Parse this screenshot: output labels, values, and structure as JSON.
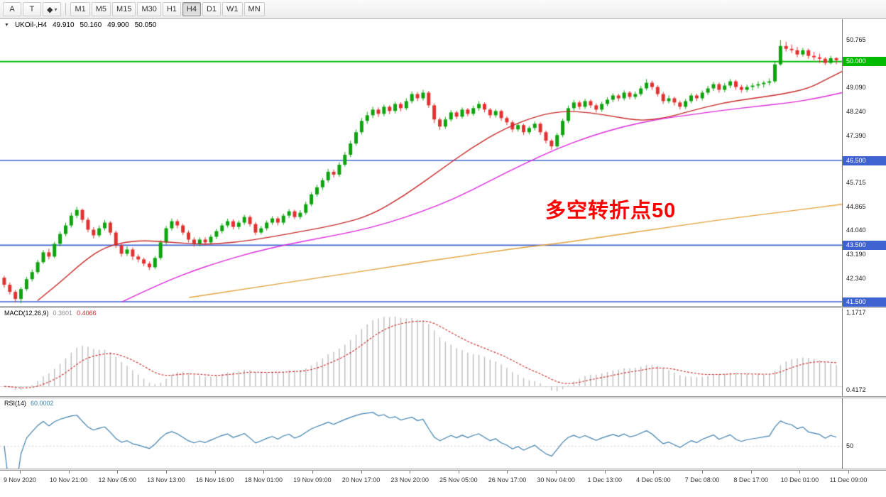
{
  "icons": {
    "collapse": "▼",
    "caret": "▾"
  },
  "toolbar": {
    "tools": [
      {
        "name": "arrow-tool",
        "label": "A"
      },
      {
        "name": "text-tool",
        "label": "T"
      },
      {
        "name": "shapes-tool",
        "label": "◆",
        "caret": true
      }
    ],
    "timeframes": [
      {
        "label": "M1",
        "active": false
      },
      {
        "label": "M5",
        "active": false
      },
      {
        "label": "M15",
        "active": false
      },
      {
        "label": "M30",
        "active": false
      },
      {
        "label": "H1",
        "active": false
      },
      {
        "label": "H4",
        "active": true
      },
      {
        "label": "D1",
        "active": false
      },
      {
        "label": "W1",
        "active": false
      },
      {
        "label": "MN",
        "active": false
      }
    ]
  },
  "main_chart": {
    "symbol": "UKOil-,H4",
    "ohlc_display": {
      "open": "49.910",
      "high": "50.160",
      "low": "49.900",
      "close": "50.050"
    },
    "annotation": "多空转折点50",
    "annotation_color": "#FE0000",
    "axis_labels": [
      "50.765",
      "49.090",
      "48.240",
      "47.390",
      "45.715",
      "44.865",
      "44.040",
      "43.190",
      "42.340"
    ],
    "hlines": [
      {
        "price": 50.0,
        "label": "50.000",
        "color": "#00BA00",
        "width": 2
      },
      {
        "price": 46.5,
        "label": "46.500",
        "color": "#3E62D0",
        "width": 1.6
      },
      {
        "price": 43.5,
        "label": "43.500",
        "color": "#3E62D0",
        "width": 1.6
      },
      {
        "price": 41.5,
        "label": "41.500",
        "color": "#3E62D0",
        "width": 1.6
      }
    ],
    "price_min": 41.35,
    "price_max": 51.5
  },
  "macd_panel": {
    "title": "MACD(12,26,9)",
    "main_value": "0.3601",
    "signal_value": "0.4066",
    "axis_labels": [
      {
        "text": "1.1717",
        "pos": 0.05
      },
      {
        "text": "0.4172",
        "pos": 0.93
      }
    ],
    "fast": 12,
    "slow": 26,
    "signal": 9,
    "histogram_color": "#BDBDBD",
    "signal_color": "#C62828"
  },
  "rsi_panel": {
    "title": "RSI(14)",
    "value": "60.0002",
    "period": 14,
    "level": 50,
    "axis_labels": [
      {
        "text": "50",
        "value": 50
      }
    ],
    "line_color": "#3E7FAD",
    "range": [
      25,
      102
    ]
  },
  "time_axis": [
    "9 Nov 2020",
    "10 Nov 21:00",
    "12 Nov 05:00",
    "13 Nov 13:00",
    "16 Nov 16:00",
    "18 Nov 01:00",
    "19 Nov 09:00",
    "20 Nov 17:00",
    "23 Nov 20:00",
    "25 Nov 05:00",
    "26 Nov 17:00",
    "30 Nov 04:00",
    "1 Dec 13:00",
    "4 Dec 05:00",
    "7 Dec 08:00",
    "8 Dec 17:00",
    "10 Dec 01:00",
    "11 Dec 09:00"
  ],
  "colors": {
    "up": "#0EA40E",
    "down": "#E03232"
  },
  "chart_data": {
    "type": "candlestick",
    "symbol": "UKOil-",
    "timeframe": "H4",
    "title": "UKOil-,H4 49.910 50.160 49.900 50.050",
    "ylim": [
      41.35,
      51.5
    ],
    "hlines": [
      50.0,
      46.5,
      43.5,
      41.5
    ],
    "indicators": {
      "macd": {
        "fast": 12,
        "slow": 26,
        "signal": 9,
        "last_main": 0.3601,
        "last_signal": 0.4066
      },
      "rsi": {
        "period": 14,
        "last": 60.0002
      }
    },
    "ohlc": [
      [
        42.35,
        42.42,
        42.0,
        42.1
      ],
      [
        42.1,
        42.18,
        41.76,
        41.85
      ],
      [
        41.85,
        41.92,
        41.48,
        41.6
      ],
      [
        41.6,
        42.02,
        41.45,
        41.95
      ],
      [
        41.95,
        42.38,
        41.88,
        42.3
      ],
      [
        42.3,
        42.64,
        42.22,
        42.55
      ],
      [
        42.55,
        42.98,
        42.48,
        42.9
      ],
      [
        42.9,
        43.33,
        42.84,
        43.25
      ],
      [
        43.25,
        43.38,
        43.0,
        43.1
      ],
      [
        43.1,
        43.62,
        43.04,
        43.55
      ],
      [
        43.55,
        43.99,
        43.47,
        43.9
      ],
      [
        43.9,
        44.3,
        43.82,
        44.2
      ],
      [
        44.2,
        44.66,
        44.12,
        44.55
      ],
      [
        44.55,
        44.86,
        44.46,
        44.75
      ],
      [
        44.75,
        44.8,
        44.3,
        44.4
      ],
      [
        44.4,
        44.48,
        43.96,
        44.05
      ],
      [
        44.05,
        44.14,
        43.74,
        43.85
      ],
      [
        43.85,
        44.2,
        43.78,
        44.1
      ],
      [
        44.1,
        44.4,
        44.02,
        44.3
      ],
      [
        44.3,
        44.36,
        43.86,
        43.95
      ],
      [
        43.95,
        44.02,
        43.4,
        43.5
      ],
      [
        43.5,
        43.58,
        43.1,
        43.2
      ],
      [
        43.2,
        43.46,
        43.12,
        43.35
      ],
      [
        43.35,
        43.42,
        42.98,
        43.1
      ],
      [
        43.1,
        43.18,
        42.9,
        43.0
      ],
      [
        43.0,
        43.06,
        42.76,
        42.85
      ],
      [
        42.85,
        42.92,
        42.62,
        42.72
      ],
      [
        42.72,
        43.12,
        42.66,
        43.05
      ],
      [
        43.05,
        43.68,
        42.98,
        43.6
      ],
      [
        43.6,
        44.18,
        43.52,
        44.1
      ],
      [
        44.1,
        44.45,
        44.02,
        44.35
      ],
      [
        44.35,
        44.42,
        44.1,
        44.2
      ],
      [
        44.2,
        44.26,
        43.86,
        43.95
      ],
      [
        43.95,
        44.02,
        43.6,
        43.7
      ],
      [
        43.7,
        43.78,
        43.45,
        43.55
      ],
      [
        43.55,
        43.78,
        43.46,
        43.7
      ],
      [
        43.7,
        43.78,
        43.5,
        43.6
      ],
      [
        43.6,
        43.88,
        43.52,
        43.8
      ],
      [
        43.8,
        44.08,
        43.72,
        44.0
      ],
      [
        44.0,
        44.28,
        43.92,
        44.2
      ],
      [
        44.2,
        44.44,
        44.12,
        44.35
      ],
      [
        44.35,
        44.42,
        44.06,
        44.15
      ],
      [
        44.15,
        44.38,
        44.06,
        44.3
      ],
      [
        44.3,
        44.58,
        44.22,
        44.5
      ],
      [
        44.5,
        44.56,
        44.16,
        44.25
      ],
      [
        44.25,
        44.32,
        43.86,
        43.95
      ],
      [
        43.95,
        44.18,
        43.88,
        44.1
      ],
      [
        44.1,
        44.38,
        44.02,
        44.3
      ],
      [
        44.3,
        44.53,
        44.22,
        44.45
      ],
      [
        44.45,
        44.52,
        44.2,
        44.3
      ],
      [
        44.3,
        44.62,
        44.22,
        44.55
      ],
      [
        44.55,
        44.78,
        44.46,
        44.7
      ],
      [
        44.7,
        44.76,
        44.42,
        44.5
      ],
      [
        44.5,
        44.74,
        44.42,
        44.65
      ],
      [
        44.65,
        45.04,
        44.58,
        44.95
      ],
      [
        44.95,
        45.38,
        44.88,
        45.3
      ],
      [
        45.3,
        45.64,
        45.22,
        45.55
      ],
      [
        45.55,
        45.88,
        45.46,
        45.8
      ],
      [
        45.8,
        46.2,
        45.72,
        46.1
      ],
      [
        46.1,
        46.18,
        45.9,
        46.0
      ],
      [
        46.0,
        46.44,
        45.92,
        46.35
      ],
      [
        46.35,
        46.8,
        46.28,
        46.7
      ],
      [
        46.7,
        47.2,
        46.62,
        47.1
      ],
      [
        47.1,
        47.6,
        47.02,
        47.5
      ],
      [
        47.5,
        48.0,
        47.42,
        47.9
      ],
      [
        47.9,
        48.22,
        47.8,
        48.1
      ],
      [
        48.1,
        48.4,
        48.0,
        48.3
      ],
      [
        48.3,
        48.38,
        48.04,
        48.15
      ],
      [
        48.15,
        48.48,
        48.06,
        48.4
      ],
      [
        48.4,
        48.46,
        48.14,
        48.25
      ],
      [
        48.25,
        48.58,
        48.16,
        48.5
      ],
      [
        48.5,
        48.56,
        48.24,
        48.35
      ],
      [
        48.35,
        48.7,
        48.28,
        48.6
      ],
      [
        48.6,
        48.94,
        48.52,
        48.85
      ],
      [
        48.85,
        48.92,
        48.6,
        48.7
      ],
      [
        48.7,
        49.0,
        48.62,
        48.9
      ],
      [
        48.9,
        48.96,
        48.36,
        48.45
      ],
      [
        48.45,
        48.52,
        47.82,
        47.95
      ],
      [
        47.95,
        48.02,
        47.58,
        47.7
      ],
      [
        47.7,
        48.04,
        47.62,
        47.95
      ],
      [
        47.95,
        48.28,
        47.88,
        48.2
      ],
      [
        48.2,
        48.26,
        47.96,
        48.05
      ],
      [
        48.05,
        48.38,
        47.98,
        48.3
      ],
      [
        48.3,
        48.36,
        48.06,
        48.15
      ],
      [
        48.15,
        48.44,
        48.08,
        48.35
      ],
      [
        48.35,
        48.6,
        48.26,
        48.5
      ],
      [
        48.5,
        48.56,
        48.2,
        48.3
      ],
      [
        48.3,
        48.36,
        48.0,
        48.1
      ],
      [
        48.1,
        48.32,
        48.02,
        48.25
      ],
      [
        48.25,
        48.3,
        47.9,
        48.0
      ],
      [
        48.0,
        48.06,
        47.75,
        47.85
      ],
      [
        47.85,
        47.92,
        47.5,
        47.6
      ],
      [
        47.6,
        47.82,
        47.52,
        47.75
      ],
      [
        47.75,
        47.8,
        47.4,
        47.5
      ],
      [
        47.5,
        47.72,
        47.42,
        47.65
      ],
      [
        47.65,
        47.88,
        47.56,
        47.8
      ],
      [
        47.8,
        47.86,
        47.4,
        47.5
      ],
      [
        47.5,
        47.56,
        47.1,
        47.2
      ],
      [
        47.2,
        47.26,
        46.88,
        47.0
      ],
      [
        47.0,
        47.48,
        46.94,
        47.4
      ],
      [
        47.4,
        47.98,
        47.32,
        47.9
      ],
      [
        47.9,
        48.44,
        47.82,
        48.35
      ],
      [
        48.35,
        48.64,
        48.26,
        48.55
      ],
      [
        48.55,
        48.62,
        48.3,
        48.4
      ],
      [
        48.4,
        48.68,
        48.32,
        48.6
      ],
      [
        48.6,
        48.66,
        48.36,
        48.45
      ],
      [
        48.45,
        48.52,
        48.2,
        48.3
      ],
      [
        48.3,
        48.58,
        48.22,
        48.5
      ],
      [
        48.5,
        48.74,
        48.42,
        48.65
      ],
      [
        48.65,
        48.88,
        48.56,
        48.8
      ],
      [
        48.8,
        48.86,
        48.6,
        48.7
      ],
      [
        48.7,
        48.98,
        48.62,
        48.9
      ],
      [
        48.9,
        48.96,
        48.66,
        48.75
      ],
      [
        48.75,
        48.94,
        48.66,
        48.85
      ],
      [
        48.85,
        49.14,
        48.78,
        49.05
      ],
      [
        49.05,
        49.38,
        48.98,
        49.25
      ],
      [
        49.25,
        49.32,
        49.0,
        49.1
      ],
      [
        49.1,
        49.16,
        48.76,
        48.85
      ],
      [
        48.85,
        48.92,
        48.5,
        48.6
      ],
      [
        48.6,
        48.8,
        48.52,
        48.7
      ],
      [
        48.7,
        48.76,
        48.44,
        48.55
      ],
      [
        48.55,
        48.62,
        48.3,
        48.4
      ],
      [
        48.4,
        48.68,
        48.32,
        48.6
      ],
      [
        48.6,
        48.88,
        48.52,
        48.8
      ],
      [
        48.8,
        48.86,
        48.6,
        48.7
      ],
      [
        48.7,
        48.98,
        48.62,
        48.9
      ],
      [
        48.9,
        49.14,
        48.82,
        49.05
      ],
      [
        49.05,
        49.28,
        48.96,
        49.2
      ],
      [
        49.2,
        49.26,
        48.9,
        49.0
      ],
      [
        49.0,
        49.24,
        48.92,
        49.15
      ],
      [
        49.15,
        49.38,
        49.06,
        49.3
      ],
      [
        49.3,
        49.36,
        49.0,
        49.1
      ],
      [
        49.1,
        49.18,
        48.9,
        49.0
      ],
      [
        49.0,
        49.18,
        48.92,
        49.1
      ],
      [
        49.1,
        49.24,
        48.98,
        49.15
      ],
      [
        49.15,
        49.3,
        49.05,
        49.2
      ],
      [
        49.2,
        49.32,
        49.08,
        49.25
      ],
      [
        49.25,
        49.4,
        49.15,
        49.3
      ],
      [
        49.3,
        50.0,
        49.24,
        49.9
      ],
      [
        49.9,
        50.765,
        49.85,
        50.55
      ],
      [
        50.55,
        50.7,
        50.35,
        50.45
      ],
      [
        50.45,
        50.6,
        50.3,
        50.4
      ],
      [
        50.4,
        50.52,
        50.15,
        50.25
      ],
      [
        50.25,
        50.48,
        50.18,
        50.4
      ],
      [
        50.4,
        50.46,
        50.1,
        50.2
      ],
      [
        50.2,
        50.34,
        50.05,
        50.15
      ],
      [
        50.15,
        50.28,
        49.95,
        50.1
      ],
      [
        50.1,
        50.16,
        49.88,
        49.95
      ],
      [
        49.95,
        50.2,
        49.9,
        50.12
      ],
      [
        50.12,
        50.16,
        49.9,
        50.05
      ]
    ],
    "moving_averages": [
      {
        "name": "ma-fast-red",
        "color": "#C62828",
        "points": [
          [
            0.045,
            41.55
          ],
          [
            0.07,
            42.15
          ],
          [
            0.1,
            42.95
          ],
          [
            0.125,
            43.45
          ],
          [
            0.16,
            43.68
          ],
          [
            0.2,
            43.62
          ],
          [
            0.24,
            43.52
          ],
          [
            0.28,
            43.6
          ],
          [
            0.32,
            43.78
          ],
          [
            0.36,
            44.0
          ],
          [
            0.4,
            44.22
          ],
          [
            0.44,
            44.55
          ],
          [
            0.48,
            45.25
          ],
          [
            0.52,
            46.1
          ],
          [
            0.56,
            46.95
          ],
          [
            0.6,
            47.65
          ],
          [
            0.64,
            48.1
          ],
          [
            0.67,
            48.25
          ],
          [
            0.7,
            48.2
          ],
          [
            0.73,
            48.05
          ],
          [
            0.76,
            47.9
          ],
          [
            0.79,
            48.0
          ],
          [
            0.82,
            48.25
          ],
          [
            0.86,
            48.55
          ],
          [
            0.9,
            48.72
          ],
          [
            0.93,
            48.85
          ],
          [
            0.96,
            49.05
          ],
          [
            0.98,
            49.35
          ],
          [
            1.0,
            49.65
          ]
        ]
      },
      {
        "name": "ma-mid-magenta",
        "color": "#DB2ADB",
        "points": [
          [
            0.145,
            41.5
          ],
          [
            0.17,
            41.85
          ],
          [
            0.2,
            42.25
          ],
          [
            0.23,
            42.6
          ],
          [
            0.26,
            42.9
          ],
          [
            0.3,
            43.25
          ],
          [
            0.34,
            43.52
          ],
          [
            0.38,
            43.75
          ],
          [
            0.42,
            43.98
          ],
          [
            0.46,
            44.28
          ],
          [
            0.5,
            44.68
          ],
          [
            0.54,
            45.15
          ],
          [
            0.58,
            45.75
          ],
          [
            0.62,
            46.35
          ],
          [
            0.66,
            46.9
          ],
          [
            0.7,
            47.35
          ],
          [
            0.74,
            47.7
          ],
          [
            0.78,
            47.95
          ],
          [
            0.82,
            48.12
          ],
          [
            0.86,
            48.28
          ],
          [
            0.9,
            48.42
          ],
          [
            0.94,
            48.55
          ],
          [
            0.97,
            48.7
          ],
          [
            1.0,
            48.9
          ]
        ]
      },
      {
        "name": "ma-slow-orange",
        "color": "#DFA23C",
        "points": [
          [
            0.225,
            41.65
          ],
          [
            0.3,
            42.0
          ],
          [
            0.38,
            42.35
          ],
          [
            0.46,
            42.72
          ],
          [
            0.54,
            43.08
          ],
          [
            0.62,
            43.42
          ],
          [
            0.66,
            43.55
          ],
          [
            0.7,
            43.72
          ],
          [
            0.78,
            44.08
          ],
          [
            0.86,
            44.42
          ],
          [
            0.93,
            44.68
          ],
          [
            1.0,
            44.95
          ]
        ]
      }
    ]
  }
}
